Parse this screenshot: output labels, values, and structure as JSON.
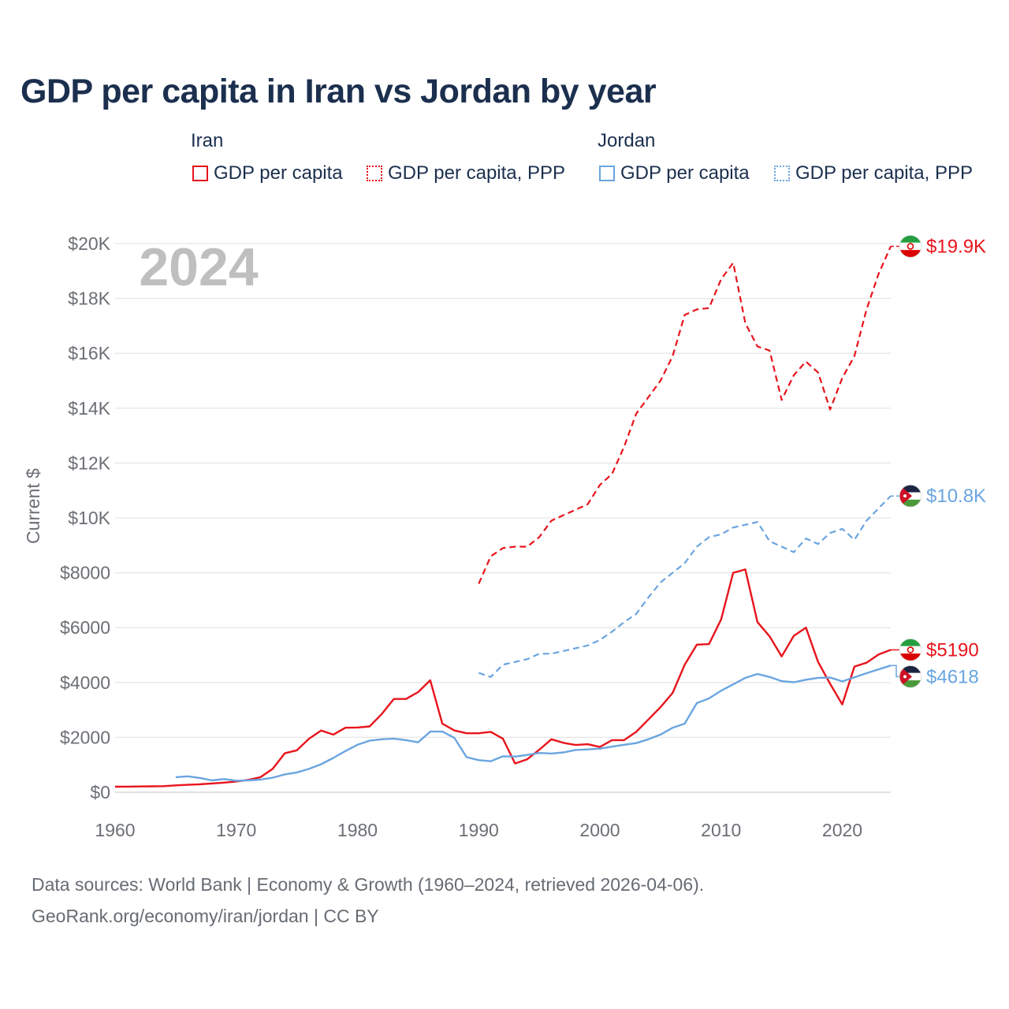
{
  "title": "GDP per capita in Iran vs Jordan by year",
  "legend": {
    "iran_heading": "Iran",
    "jordan_heading": "Jordan",
    "gdp_label": "GDP per capita",
    "ppp_label": "GDP per capita, PPP"
  },
  "colors": {
    "iran": "#e8141c",
    "jordan": "#6aa5e0",
    "grid": "#e6e6e6",
    "axis_text": "#6b6f75",
    "year_watermark": "#bfbfbf"
  },
  "source": {
    "line1": "Data sources: World Bank | Economy & Growth (1960–2024, retrieved 2026-04-06).",
    "line2": "GeoRank.org/economy/iran/jordan | CC BY"
  },
  "chart_data": {
    "type": "line",
    "year_label": "2024",
    "ylabel": "Current $",
    "xlim": [
      1960,
      2024
    ],
    "ylim": [
      0,
      20000
    ],
    "x_ticks": [
      1960,
      1970,
      1980,
      1990,
      2000,
      2010,
      2020
    ],
    "x_tick_labels": [
      "1960",
      "1970",
      "1980",
      "1990",
      "2000",
      "2010",
      "2020"
    ],
    "y_ticks": [
      0,
      2000,
      4000,
      6000,
      8000,
      10000,
      12000,
      14000,
      16000,
      18000,
      20000
    ],
    "y_tick_labels": [
      "$0",
      "$2000",
      "$4000",
      "$6000",
      "$8000",
      "$10K",
      "$12K",
      "$14K",
      "$16K",
      "$18K",
      "$20K"
    ],
    "series": [
      {
        "name": "Iran GDP per capita, PPP",
        "country": "iran",
        "style": "dashed",
        "end_label": "$19.9K",
        "x": [
          1990,
          1991,
          1992,
          1993,
          1994,
          1995,
          1996,
          1997,
          1998,
          1999,
          2000,
          2001,
          2002,
          2003,
          2004,
          2005,
          2006,
          2007,
          2008,
          2009,
          2010,
          2011,
          2012,
          2013,
          2014,
          2015,
          2016,
          2017,
          2018,
          2019,
          2020,
          2021,
          2022,
          2023,
          2024
        ],
        "values": [
          7600,
          8600,
          8900,
          8950,
          8950,
          9300,
          9900,
          10100,
          10300,
          10500,
          11200,
          11600,
          12600,
          13800,
          14400,
          15000,
          15900,
          17400,
          17600,
          17650,
          18700,
          19300,
          17100,
          16250,
          16100,
          14300,
          15200,
          15700,
          15300,
          13950,
          15100,
          15900,
          17600,
          18900,
          19900
        ]
      },
      {
        "name": "Jordan GDP per capita, PPP",
        "country": "jordan",
        "style": "dashed",
        "end_label": "$10.8K",
        "x": [
          1990,
          1991,
          1992,
          1993,
          1994,
          1995,
          1996,
          1997,
          1998,
          1999,
          2000,
          2001,
          2002,
          2003,
          2004,
          2005,
          2006,
          2007,
          2008,
          2009,
          2010,
          2011,
          2012,
          2013,
          2014,
          2015,
          2016,
          2017,
          2018,
          2019,
          2020,
          2021,
          2022,
          2023,
          2024
        ],
        "values": [
          4350,
          4200,
          4650,
          4750,
          4850,
          5050,
          5050,
          5150,
          5250,
          5350,
          5550,
          5850,
          6200,
          6500,
          7100,
          7650,
          8000,
          8350,
          8950,
          9300,
          9400,
          9650,
          9750,
          9850,
          9150,
          8950,
          8750,
          9250,
          9050,
          9450,
          9600,
          9200,
          9900,
          10350,
          10800
        ]
      },
      {
        "name": "Iran GDP per capita",
        "country": "iran",
        "style": "solid",
        "end_label": "$5190",
        "x": [
          1960,
          1961,
          1962,
          1963,
          1964,
          1965,
          1966,
          1967,
          1968,
          1969,
          1970,
          1971,
          1972,
          1973,
          1974,
          1975,
          1976,
          1977,
          1978,
          1979,
          1980,
          1981,
          1982,
          1983,
          1984,
          1985,
          1986,
          1987,
          1988,
          1989,
          1990,
          1991,
          1992,
          1993,
          1994,
          1995,
          1996,
          1997,
          1998,
          1999,
          2000,
          2001,
          2002,
          2003,
          2004,
          2005,
          2006,
          2007,
          2008,
          2009,
          2010,
          2011,
          2012,
          2013,
          2014,
          2015,
          2016,
          2017,
          2018,
          2019,
          2020,
          2021,
          2022,
          2023,
          2024
        ],
        "values": [
          200,
          205,
          210,
          215,
          220,
          250,
          270,
          290,
          320,
          350,
          390,
          450,
          550,
          850,
          1420,
          1530,
          1950,
          2250,
          2100,
          2350,
          2360,
          2400,
          2850,
          3400,
          3400,
          3650,
          4080,
          2500,
          2250,
          2150,
          2150,
          2200,
          1950,
          1050,
          1200,
          1550,
          1930,
          1800,
          1720,
          1750,
          1650,
          1900,
          1900,
          2200,
          2650,
          3100,
          3620,
          4650,
          5380,
          5400,
          6300,
          8000,
          8120,
          6200,
          5680,
          4950,
          5700,
          6000,
          4750,
          3950,
          3200,
          4580,
          4720,
          5020,
          5190
        ]
      },
      {
        "name": "Jordan GDP per capita",
        "country": "jordan",
        "style": "solid",
        "end_label": "$4618",
        "x": [
          1965,
          1966,
          1967,
          1968,
          1969,
          1970,
          1971,
          1972,
          1973,
          1974,
          1975,
          1976,
          1977,
          1978,
          1979,
          1980,
          1981,
          1982,
          1983,
          1984,
          1985,
          1986,
          1987,
          1988,
          1989,
          1990,
          1991,
          1992,
          1993,
          1994,
          1995,
          1996,
          1997,
          1998,
          1999,
          2000,
          2001,
          2002,
          2003,
          2004,
          2005,
          2006,
          2007,
          2008,
          2009,
          2010,
          2011,
          2012,
          2013,
          2014,
          2015,
          2016,
          2017,
          2018,
          2019,
          2020,
          2021,
          2022,
          2023,
          2024
        ],
        "values": [
          550,
          580,
          520,
          430,
          480,
          420,
          430,
          460,
          530,
          650,
          720,
          850,
          1020,
          1250,
          1500,
          1730,
          1880,
          1930,
          1950,
          1900,
          1820,
          2210,
          2210,
          1980,
          1280,
          1170,
          1130,
          1310,
          1300,
          1360,
          1430,
          1410,
          1450,
          1540,
          1560,
          1590,
          1660,
          1730,
          1790,
          1930,
          2100,
          2350,
          2500,
          3250,
          3420,
          3700,
          3930,
          4170,
          4310,
          4200,
          4050,
          4010,
          4100,
          4170,
          4180,
          4040,
          4190,
          4340,
          4480,
          4618
        ]
      }
    ]
  }
}
